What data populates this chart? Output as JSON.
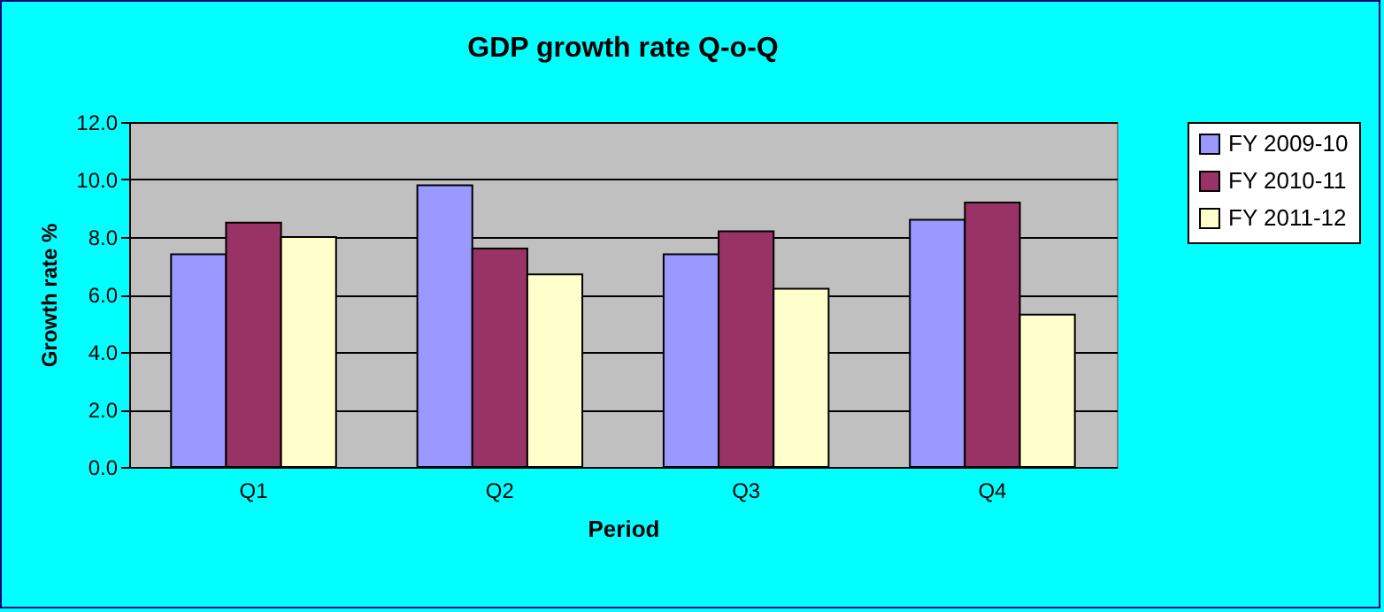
{
  "chart_data": {
    "type": "bar",
    "title": "GDP growth rate Q-o-Q",
    "xlabel": "Period",
    "ylabel": "Growth rate %",
    "categories": [
      "Q1",
      "Q2",
      "Q3",
      "Q4"
    ],
    "series": [
      {
        "name": "FY 2009-10",
        "color": "#9999ff",
        "values": [
          7.4,
          9.8,
          7.4,
          8.6
        ]
      },
      {
        "name": "FY 2010-11",
        "color": "#993366",
        "values": [
          8.5,
          7.6,
          8.2,
          9.2
        ]
      },
      {
        "name": "FY 2011-12",
        "color": "#ffffcc",
        "values": [
          8.0,
          6.7,
          6.2,
          5.3
        ]
      }
    ],
    "ylim": [
      0,
      12
    ],
    "yticks": [
      {
        "value": 0,
        "label": "0.0"
      },
      {
        "value": 2,
        "label": "2.0"
      },
      {
        "value": 4,
        "label": "4.0"
      },
      {
        "value": 6,
        "label": "6.0"
      },
      {
        "value": 8,
        "label": "8.0"
      },
      {
        "value": 10,
        "label": "10.0"
      },
      {
        "value": 12,
        "label": "12.0"
      }
    ],
    "grid": "y",
    "legend": "right"
  }
}
